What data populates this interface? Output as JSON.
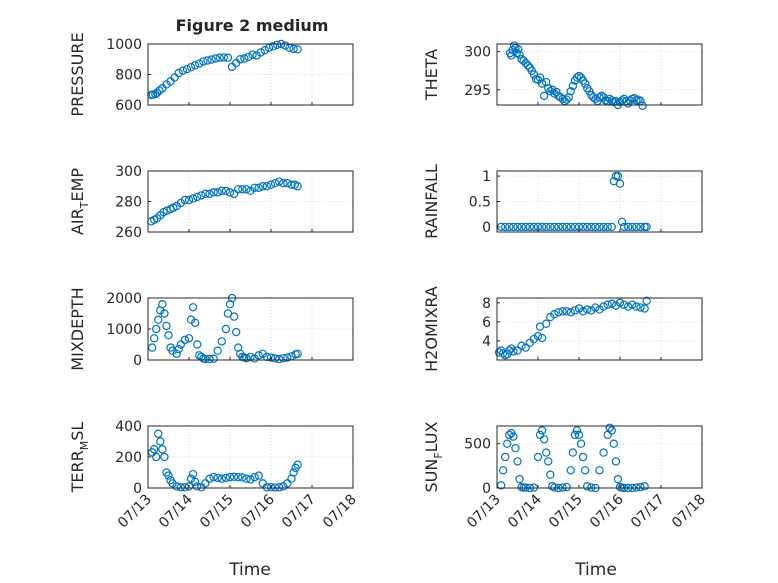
{
  "figure": {
    "title": "Figure 2 medium",
    "xlabel": "Time",
    "marker_color": "#0072bd"
  },
  "chart_data": [
    {
      "type": "scatter",
      "name": "pressure",
      "ylabel": {
        "main": "PRESSURE"
      },
      "ylim": [
        600,
        1000
      ],
      "yticks": [
        600,
        800,
        1000
      ],
      "ytick_labels": [
        "600",
        "800",
        "1000"
      ],
      "xlim": [
        "07/13",
        "07/17"
      ],
      "grid": true,
      "x_tick_labels": [],
      "x": [
        0.08,
        0.12,
        0.18,
        0.22,
        0.28,
        0.35,
        0.45,
        0.55,
        0.65,
        0.75,
        0.85,
        0.95,
        1.05,
        1.15,
        1.25,
        1.35,
        1.45,
        1.55,
        1.65,
        1.75,
        1.85,
        1.95,
        2.05,
        2.15,
        2.25,
        2.35,
        2.45,
        2.55,
        2.65,
        2.75,
        2.85,
        2.95,
        3.05,
        3.15,
        3.25,
        3.35,
        3.45,
        3.55,
        3.65
      ],
      "y": [
        665,
        668,
        672,
        680,
        695,
        710,
        735,
        755,
        780,
        810,
        825,
        835,
        848,
        860,
        872,
        885,
        892,
        898,
        905,
        910,
        912,
        910,
        850,
        875,
        900,
        905,
        915,
        930,
        925,
        945,
        960,
        975,
        985,
        995,
        1000,
        990,
        975,
        968,
        965
      ]
    },
    {
      "type": "scatter",
      "name": "theta",
      "ylabel": {
        "main": "THETA"
      },
      "ylim": [
        293,
        301
      ],
      "yticks": [
        295,
        300
      ],
      "ytick_labels": [
        "295",
        "300"
      ],
      "xlim": [
        "07/13",
        "07/17"
      ],
      "grid": true,
      "x_tick_labels": [],
      "x": [
        0.32,
        0.35,
        0.38,
        0.42,
        0.45,
        0.48,
        0.52,
        0.55,
        0.6,
        0.65,
        0.7,
        0.75,
        0.8,
        0.85,
        0.9,
        0.95,
        1.0,
        1.05,
        1.1,
        1.15,
        1.2,
        1.25,
        1.3,
        1.35,
        1.4,
        1.45,
        1.5,
        1.55,
        1.6,
        1.65,
        1.7,
        1.75,
        1.8,
        1.85,
        1.9,
        1.95,
        2.0,
        2.05,
        2.1,
        2.15,
        2.2,
        2.25,
        2.3,
        2.35,
        2.4,
        2.45,
        2.5,
        2.55,
        2.6,
        2.65,
        2.7,
        2.75,
        2.8,
        2.85,
        2.9,
        2.95,
        3.0,
        3.05,
        3.1,
        3.15,
        3.2,
        3.25,
        3.3,
        3.35,
        3.4,
        3.45,
        3.5,
        3.55
      ],
      "y": [
        299.8,
        299.5,
        300.2,
        300.8,
        300.5,
        299.8,
        300.3,
        299.6,
        299.0,
        298.8,
        298.5,
        298.2,
        297.9,
        297.5,
        297.0,
        296.4,
        296.3,
        296.6,
        295.8,
        294.2,
        296.0,
        295.2,
        294.8,
        295.0,
        294.5,
        294.7,
        294.2,
        294.0,
        293.8,
        293.5,
        293.7,
        294.0,
        294.8,
        295.5,
        296.2,
        296.6,
        296.8,
        296.6,
        296.2,
        295.8,
        295.2,
        294.8,
        294.3,
        294.0,
        293.8,
        293.5,
        294.0,
        294.2,
        294.0,
        293.6,
        293.5,
        293.8,
        293.6,
        293.4,
        293.5,
        293.0,
        293.4,
        293.6,
        293.8,
        293.5,
        293.2,
        293.6,
        293.8,
        293.9,
        293.6,
        293.7,
        293.5,
        292.9
      ]
    },
    {
      "type": "scatter",
      "name": "air-temp",
      "ylabel": {
        "main": "AIR",
        "sub": "T",
        "rest": "EMP"
      },
      "ylim": [
        260,
        300
      ],
      "yticks": [
        260,
        280,
        300
      ],
      "ytick_labels": [
        "260",
        "280",
        "300"
      ],
      "xlim": [
        "07/13",
        "07/17"
      ],
      "grid": true,
      "x_tick_labels": [],
      "x": [
        0.08,
        0.15,
        0.22,
        0.3,
        0.38,
        0.46,
        0.55,
        0.62,
        0.7,
        0.8,
        0.9,
        1.0,
        1.1,
        1.2,
        1.3,
        1.4,
        1.5,
        1.6,
        1.7,
        1.8,
        1.9,
        2.0,
        2.1,
        2.2,
        2.3,
        2.4,
        2.5,
        2.6,
        2.7,
        2.8,
        2.9,
        3.0,
        3.1,
        3.2,
        3.3,
        3.4,
        3.5,
        3.58,
        3.65
      ],
      "y": [
        267,
        268,
        269,
        271,
        273,
        274,
        275,
        276,
        277,
        279,
        281,
        281,
        282,
        283,
        284,
        285,
        285,
        286,
        286,
        287,
        287,
        286,
        285,
        288,
        288,
        288,
        287,
        289,
        289,
        290,
        290,
        291,
        292,
        293,
        292,
        292,
        291,
        291,
        290
      ]
    },
    {
      "type": "scatter",
      "name": "rainfall",
      "ylabel": {
        "main": "RAINFALL"
      },
      "ylim": [
        -0.1,
        1.1
      ],
      "yticks": [
        0,
        0.5,
        1
      ],
      "ytick_labels": [
        "0",
        "0.5",
        "1"
      ],
      "xlim": [
        "07/13",
        "07/17"
      ],
      "grid": true,
      "x_tick_labels": [],
      "x": [
        0.1,
        0.2,
        0.3,
        0.4,
        0.5,
        0.6,
        0.7,
        0.8,
        0.9,
        1.0,
        1.1,
        1.2,
        1.3,
        1.4,
        1.5,
        1.6,
        1.7,
        1.8,
        1.9,
        2.0,
        2.1,
        2.2,
        2.3,
        2.4,
        2.5,
        2.6,
        2.7,
        2.8,
        2.85,
        2.9,
        2.95,
        3.0,
        3.05,
        3.1,
        3.2,
        3.3,
        3.4,
        3.5,
        3.6,
        3.65
      ],
      "y": [
        0,
        0,
        0,
        0,
        0,
        0,
        0,
        0,
        0,
        0,
        0,
        0,
        0,
        0,
        0,
        0,
        0,
        0,
        0,
        0,
        0,
        0,
        0,
        0,
        0,
        0,
        0,
        0,
        0.9,
        1.0,
        1.0,
        0.85,
        0.1,
        0,
        0,
        0,
        0,
        0,
        0,
        0
      ]
    },
    {
      "type": "scatter",
      "name": "mixdepth",
      "ylabel": {
        "main": "MIXDEPTH"
      },
      "ylim": [
        0,
        2000
      ],
      "yticks": [
        0,
        1000,
        2000
      ],
      "ytick_labels": [
        "0",
        "1000",
        "2000"
      ],
      "xlim": [
        "07/13",
        "07/17"
      ],
      "grid": true,
      "x_tick_labels": [],
      "x": [
        0.1,
        0.15,
        0.2,
        0.25,
        0.3,
        0.35,
        0.4,
        0.45,
        0.5,
        0.55,
        0.6,
        0.7,
        0.75,
        0.8,
        0.9,
        1.0,
        1.05,
        1.1,
        1.15,
        1.2,
        1.25,
        1.3,
        1.35,
        1.4,
        1.5,
        1.6,
        1.7,
        1.8,
        1.9,
        1.95,
        2.0,
        2.05,
        2.1,
        2.15,
        2.2,
        2.25,
        2.3,
        2.35,
        2.4,
        2.5,
        2.6,
        2.7,
        2.8,
        2.9,
        3.0,
        3.1,
        3.2,
        3.3,
        3.4,
        3.5,
        3.6,
        3.65
      ],
      "y": [
        400,
        700,
        1000,
        1300,
        1600,
        1800,
        1500,
        1100,
        800,
        400,
        300,
        200,
        350,
        500,
        650,
        700,
        1300,
        1700,
        1200,
        500,
        150,
        100,
        50,
        30,
        30,
        40,
        300,
        600,
        1000,
        1500,
        1800,
        2000,
        1400,
        900,
        400,
        200,
        100,
        80,
        60,
        100,
        50,
        150,
        200,
        100,
        80,
        50,
        30,
        60,
        80,
        120,
        180,
        200
      ]
    },
    {
      "type": "scatter",
      "name": "h2omixra",
      "ylabel": {
        "main": "H2OMIXRA"
      },
      "ylim": [
        2,
        8.5
      ],
      "yticks": [
        4,
        6,
        8
      ],
      "ytick_labels": [
        "4",
        "6",
        "8"
      ],
      "xlim": [
        "07/13",
        "07/17"
      ],
      "grid": true,
      "x_tick_labels": [],
      "x": [
        0.05,
        0.1,
        0.15,
        0.2,
        0.25,
        0.3,
        0.35,
        0.4,
        0.5,
        0.6,
        0.7,
        0.8,
        0.9,
        1.0,
        1.05,
        1.1,
        1.2,
        1.3,
        1.4,
        1.5,
        1.6,
        1.7,
        1.8,
        1.9,
        2.0,
        2.1,
        2.2,
        2.3,
        2.4,
        2.5,
        2.6,
        2.7,
        2.8,
        2.9,
        3.0,
        3.1,
        3.2,
        3.3,
        3.4,
        3.5,
        3.6,
        3.65
      ],
      "y": [
        2.8,
        3.0,
        2.7,
        2.5,
        2.6,
        3.0,
        3.2,
        2.9,
        3.0,
        3.5,
        3.3,
        3.8,
        4.2,
        4.5,
        5.5,
        4.3,
        5.8,
        6.5,
        6.8,
        7.0,
        7.1,
        7.1,
        7.0,
        7.2,
        7.4,
        7.1,
        7.3,
        7.2,
        7.5,
        7.3,
        7.6,
        7.8,
        7.9,
        7.7,
        8.0,
        7.8,
        7.6,
        7.8,
        7.6,
        7.5,
        7.4,
        8.2
      ]
    },
    {
      "type": "scatter",
      "name": "terr-msl",
      "ylabel": {
        "main": "TERR",
        "sub": "M",
        "rest": "SL"
      },
      "ylim": [
        0,
        400
      ],
      "yticks": [
        0,
        200,
        400
      ],
      "ytick_labels": [
        "0",
        "200",
        "400"
      ],
      "xlim": [
        "07/13",
        "07/17"
      ],
      "grid": true,
      "x_tick_labels": [
        "07/13",
        "07/14",
        "07/15",
        "07/16",
        "07/17",
        "07/18"
      ],
      "x": [
        0.1,
        0.15,
        0.2,
        0.25,
        0.3,
        0.35,
        0.4,
        0.45,
        0.5,
        0.55,
        0.6,
        0.7,
        0.8,
        0.9,
        1.0,
        1.05,
        1.1,
        1.15,
        1.2,
        1.3,
        1.4,
        1.5,
        1.6,
        1.7,
        1.8,
        1.9,
        2.0,
        2.1,
        2.2,
        2.3,
        2.4,
        2.5,
        2.6,
        2.7,
        2.8,
        2.9,
        3.0,
        3.1,
        3.2,
        3.3,
        3.4,
        3.5,
        3.55,
        3.6,
        3.65
      ],
      "y": [
        230,
        250,
        200,
        350,
        300,
        250,
        200,
        100,
        80,
        50,
        30,
        10,
        5,
        5,
        10,
        60,
        90,
        40,
        10,
        5,
        30,
        60,
        70,
        65,
        60,
        65,
        70,
        72,
        70,
        68,
        60,
        55,
        70,
        80,
        30,
        5,
        5,
        3,
        5,
        10,
        30,
        60,
        100,
        130,
        150
      ]
    },
    {
      "type": "scatter",
      "name": "sun-flux",
      "ylabel": {
        "main": "SUN",
        "sub": "F",
        "rest": "LUX"
      },
      "ylim": [
        0,
        700
      ],
      "yticks": [
        0,
        500
      ],
      "ytick_labels": [
        "0",
        "500"
      ],
      "xlim": [
        "07/13",
        "07/17"
      ],
      "grid": true,
      "x_tick_labels": [
        "07/13",
        "07/14",
        "07/15",
        "07/16",
        "07/17",
        "07/18"
      ],
      "x": [
        0.1,
        0.15,
        0.2,
        0.25,
        0.3,
        0.35,
        0.4,
        0.45,
        0.5,
        0.55,
        0.6,
        0.65,
        0.7,
        0.8,
        0.9,
        1.0,
        1.05,
        1.1,
        1.15,
        1.2,
        1.25,
        1.3,
        1.35,
        1.4,
        1.5,
        1.6,
        1.7,
        1.8,
        1.85,
        1.9,
        1.95,
        2.0,
        2.05,
        2.1,
        2.15,
        2.2,
        2.3,
        2.4,
        2.5,
        2.6,
        2.7,
        2.75,
        2.8,
        2.85,
        2.9,
        2.95,
        3.0,
        3.05,
        3.1,
        3.2,
        3.3,
        3.4,
        3.5,
        3.6
      ],
      "y": [
        30,
        200,
        350,
        500,
        600,
        620,
        580,
        450,
        300,
        100,
        10,
        5,
        5,
        0,
        5,
        350,
        600,
        650,
        550,
        400,
        300,
        150,
        20,
        5,
        0,
        5,
        10,
        200,
        400,
        600,
        650,
        600,
        500,
        350,
        200,
        20,
        5,
        0,
        200,
        400,
        600,
        680,
        650,
        500,
        300,
        100,
        10,
        5,
        0,
        0,
        0,
        5,
        10,
        20
      ]
    }
  ]
}
